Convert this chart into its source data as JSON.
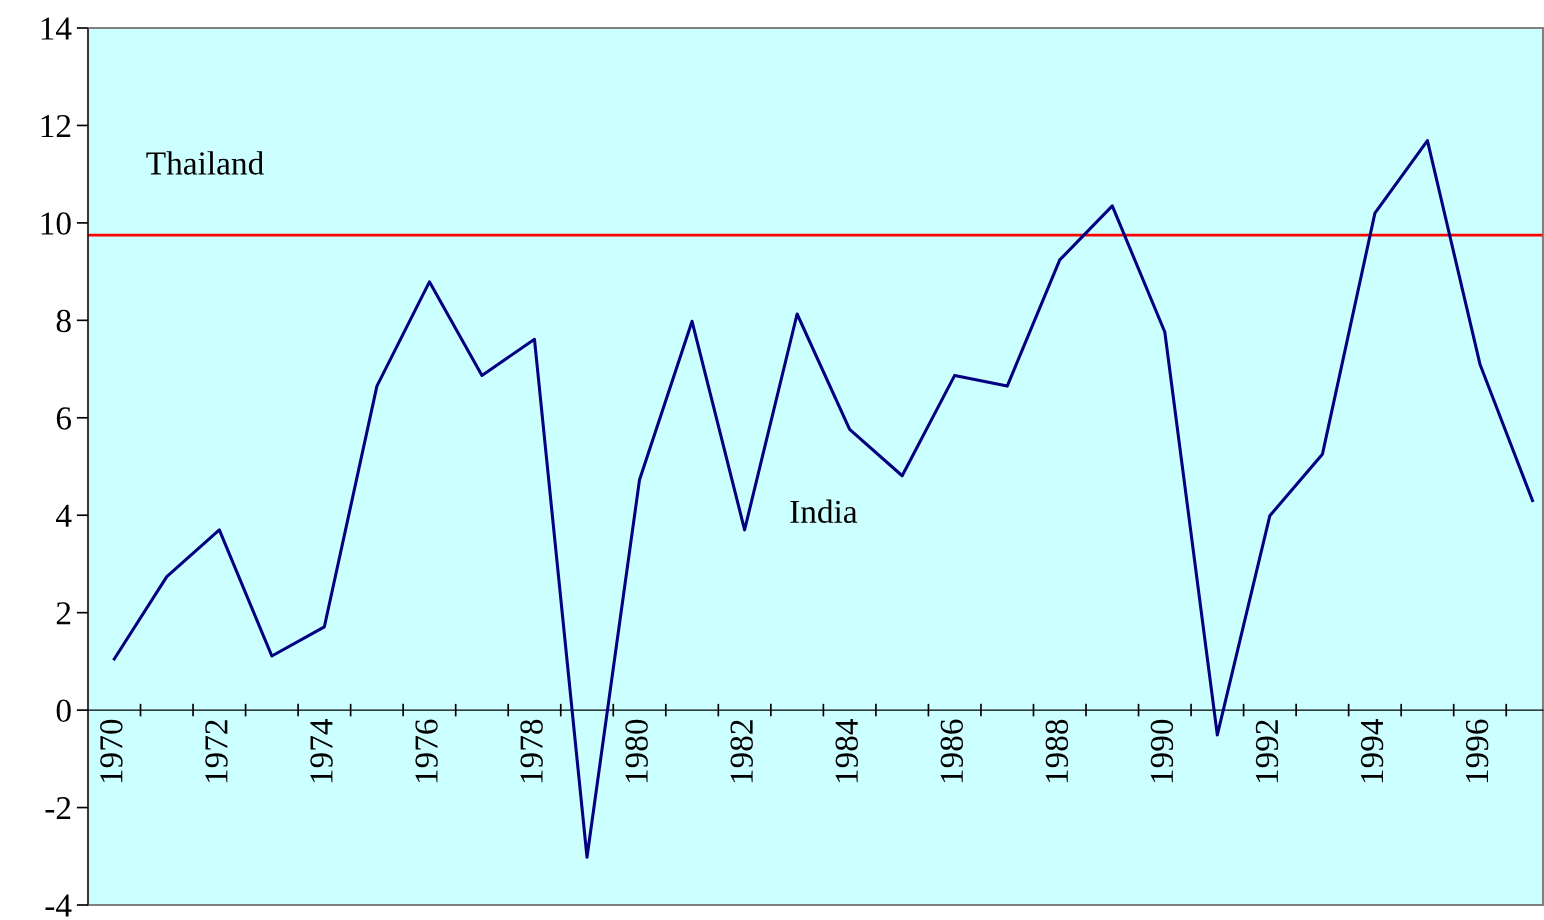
{
  "chart_data": {
    "type": "line",
    "categories": [
      "1970",
      null,
      "1972",
      null,
      "1974",
      null,
      "1976",
      null,
      "1978",
      null,
      "1980",
      null,
      "1982",
      null,
      "1984",
      null,
      "1986",
      null,
      "1988",
      null,
      "1990",
      null,
      "1992",
      null,
      "1994",
      null,
      "1996",
      null
    ],
    "series": [
      {
        "name": "India",
        "color": "#000080",
        "values": [
          1.05,
          2.74,
          3.7,
          1.11,
          1.71,
          6.65,
          8.79,
          6.87,
          7.61,
          -3.02,
          4.73,
          7.98,
          3.7,
          8.13,
          5.76,
          4.81,
          6.87,
          6.65,
          9.24,
          10.35,
          7.76,
          -0.51,
          3.99,
          5.25,
          10.2,
          11.69,
          7.1,
          4.3
        ]
      }
    ],
    "ref_lines": [
      {
        "axis": "y",
        "value": 9.75,
        "label": "Thailand",
        "color": "#ff0000"
      }
    ],
    "ylim": [
      -4,
      14
    ],
    "yticks": [
      -4,
      -2,
      0,
      2,
      4,
      6,
      8,
      10,
      12,
      14
    ],
    "grid": false,
    "legend": false,
    "marker": "none",
    "line_style": "solid"
  }
}
